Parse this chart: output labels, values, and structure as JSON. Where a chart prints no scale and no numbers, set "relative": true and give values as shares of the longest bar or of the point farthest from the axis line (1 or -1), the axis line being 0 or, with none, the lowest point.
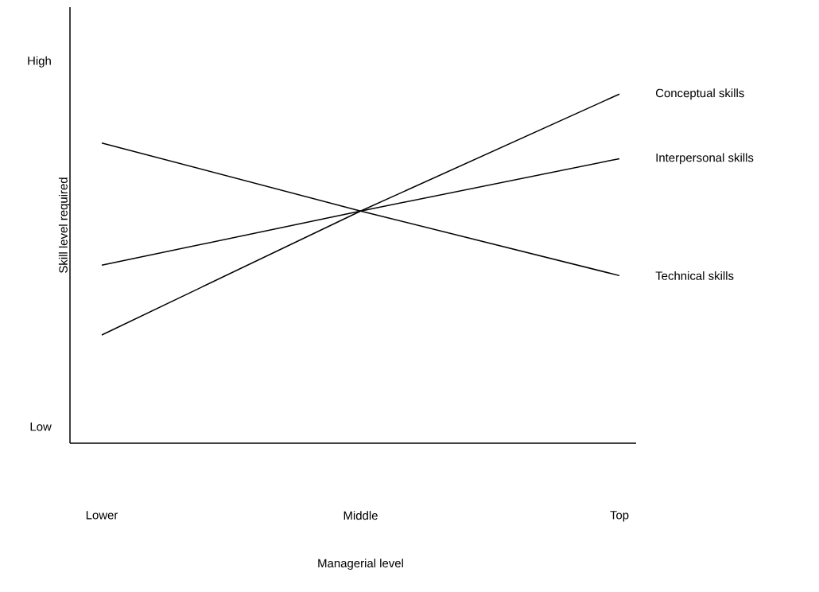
{
  "chart_data": {
    "type": "line",
    "relative": true,
    "marker": "none",
    "ylabel": "Skill level required",
    "categories": [
      "Lower",
      "Middle",
      "Top"
    ],
    "series": [
      {
        "name": "Conceptual skills",
        "color": "#000000",
        "values": [
          0.31,
          0.665,
          1
        ]
      },
      {
        "name": "Interpersonal skills",
        "color": "#000000",
        "values": [
          0.51,
          0.665,
          0.815
        ]
      },
      {
        "name": "Technical skills",
        "color": "#000000",
        "values": [
          0.86,
          0.665,
          0.48
        ]
      }
    ],
    "annotations": [
      "High",
      "Low",
      "Managerial level"
    ]
  }
}
